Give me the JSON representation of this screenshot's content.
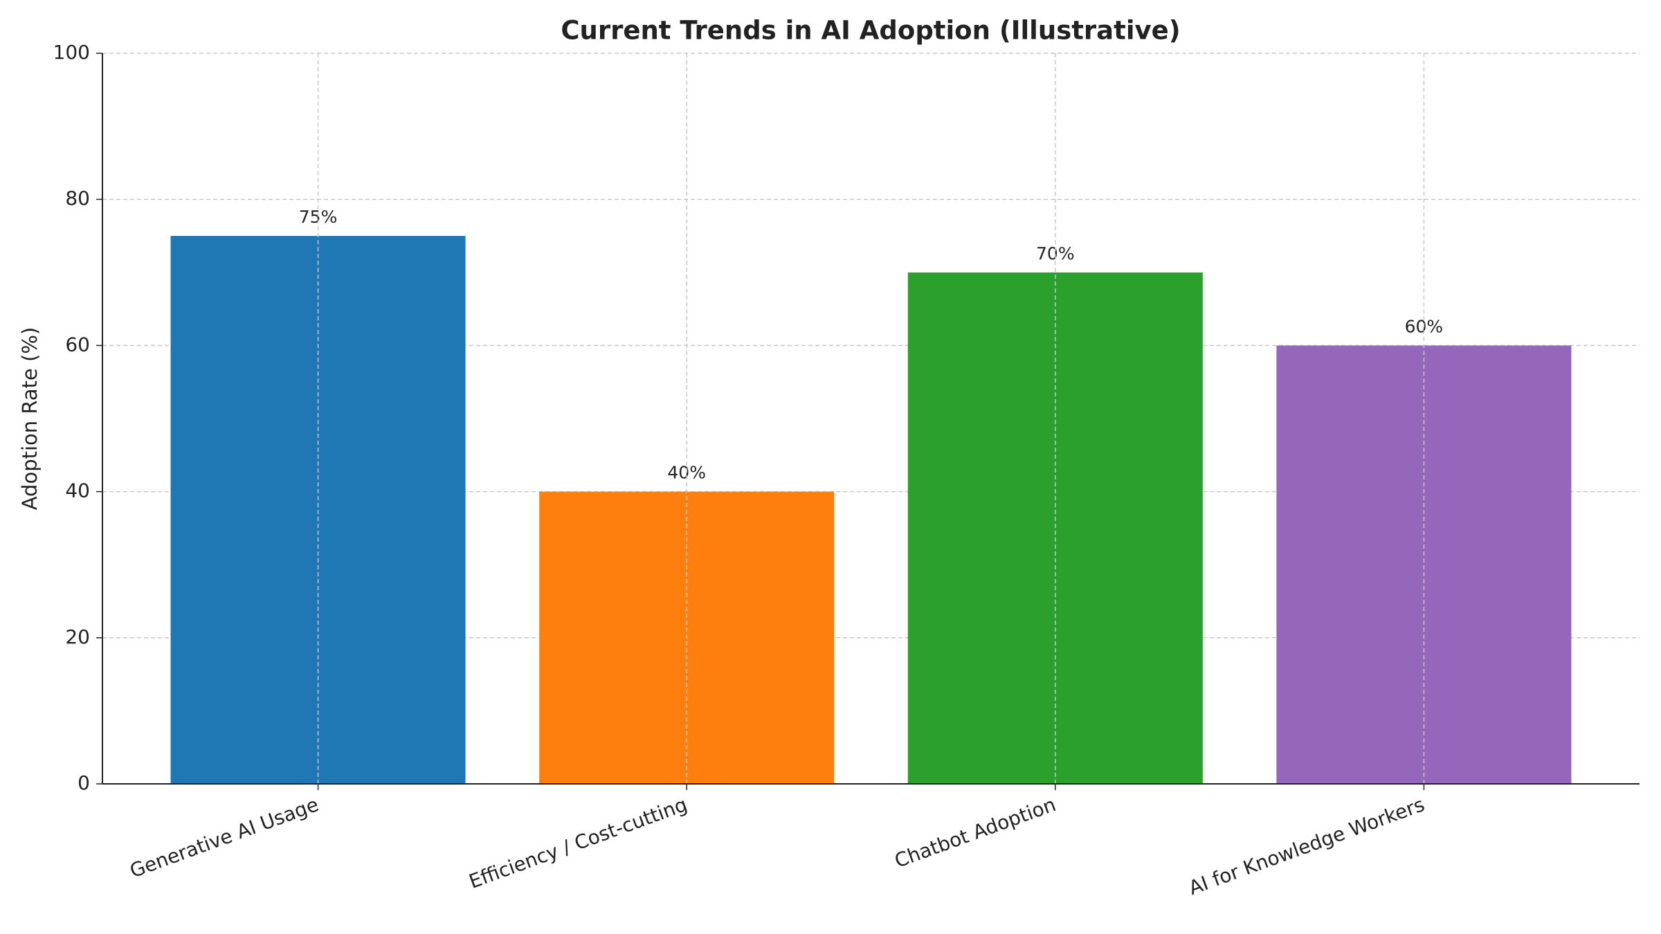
{
  "chart_data": {
    "type": "bar",
    "title": "Current Trends in AI Adoption (Illustrative)",
    "ylabel": "Adoption Rate (%)",
    "categories": [
      "Generative AI Usage",
      "Efficiency / Cost-cutting",
      "Chatbot Adoption",
      "AI for Knowledge Workers"
    ],
    "values": [
      75,
      40,
      70,
      60
    ],
    "value_labels": [
      "75%",
      "40%",
      "70%",
      "60%"
    ],
    "colors": [
      "#1f77b4",
      "#ff7f0e",
      "#2ca02c",
      "#9467bd"
    ],
    "ylim": [
      0,
      100
    ],
    "yticks": [
      0,
      20,
      40,
      60,
      80,
      100
    ],
    "grid": true
  }
}
